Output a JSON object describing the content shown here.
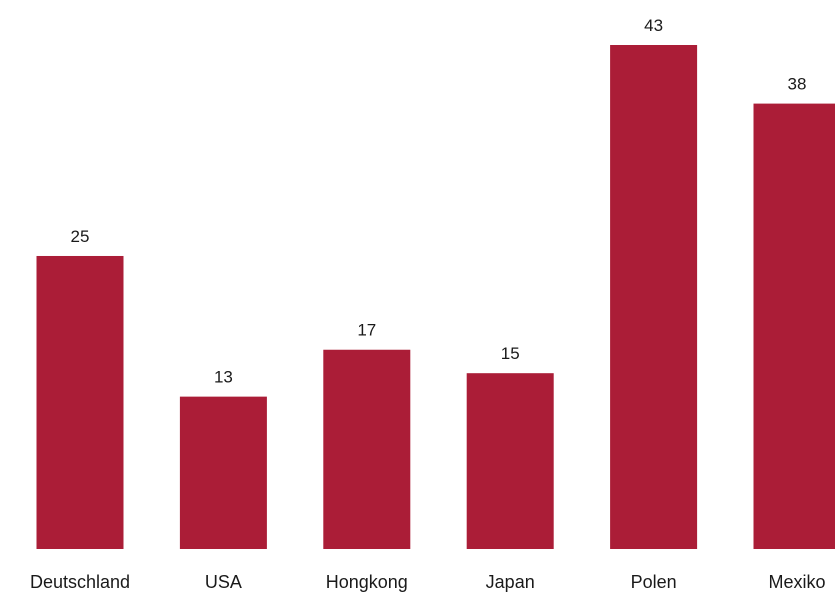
{
  "chart_data": {
    "type": "bar",
    "title": "",
    "xlabel": "",
    "ylabel": "",
    "categories": [
      "Deutschland",
      "USA",
      "Hongkong",
      "Japan",
      "Polen",
      "Mexiko"
    ],
    "values": [
      25,
      13,
      17,
      15,
      43,
      38
    ],
    "ylim": [
      0,
      43
    ],
    "grid": false,
    "legend": "none",
    "bar_color": "#ab1d37",
    "text_color": "#1a1a1a"
  }
}
